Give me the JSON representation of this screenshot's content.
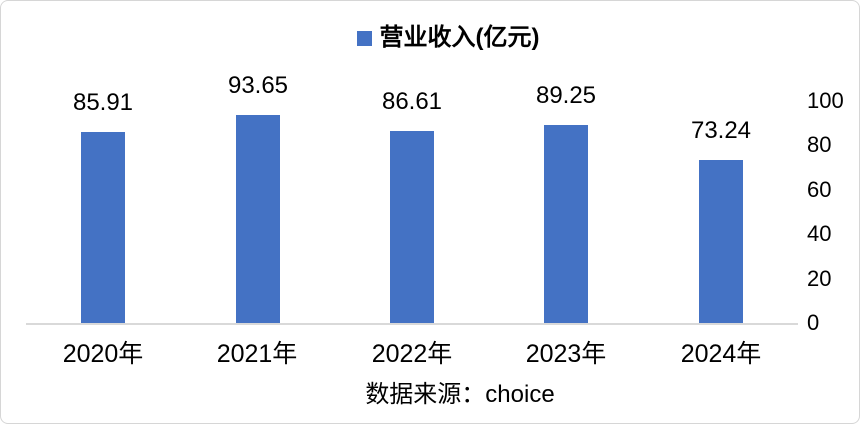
{
  "chart_data": {
    "type": "bar",
    "title": "",
    "legend": [
      "营业收入(亿元)"
    ],
    "legend_position": "top-center",
    "categories": [
      "2020年",
      "2021年",
      "2022年",
      "2023年",
      "2024年"
    ],
    "series": [
      {
        "name": "营业收入(亿元)",
        "values": [
          85.91,
          93.65,
          86.61,
          89.25,
          73.24
        ]
      }
    ],
    "value_labels": [
      "85.91",
      "93.65",
      "86.61",
      "89.25",
      "73.24"
    ],
    "y_axis": {
      "side": "right",
      "ticks": [
        0,
        20,
        40,
        60,
        80,
        100
      ],
      "range": [
        0,
        100
      ]
    },
    "x_axis": {
      "labels": [
        "2020年",
        "2021年",
        "2022年",
        "2023年",
        "2024年"
      ]
    },
    "grid": false,
    "value_labels_shown": true,
    "colors": {
      "bar": "#4472C4",
      "axis_line": "#D9D9D9",
      "text": "#000000",
      "border": "#D6D6D6",
      "background": "#FFFFFF"
    },
    "source_note": "数据来源：choice"
  }
}
